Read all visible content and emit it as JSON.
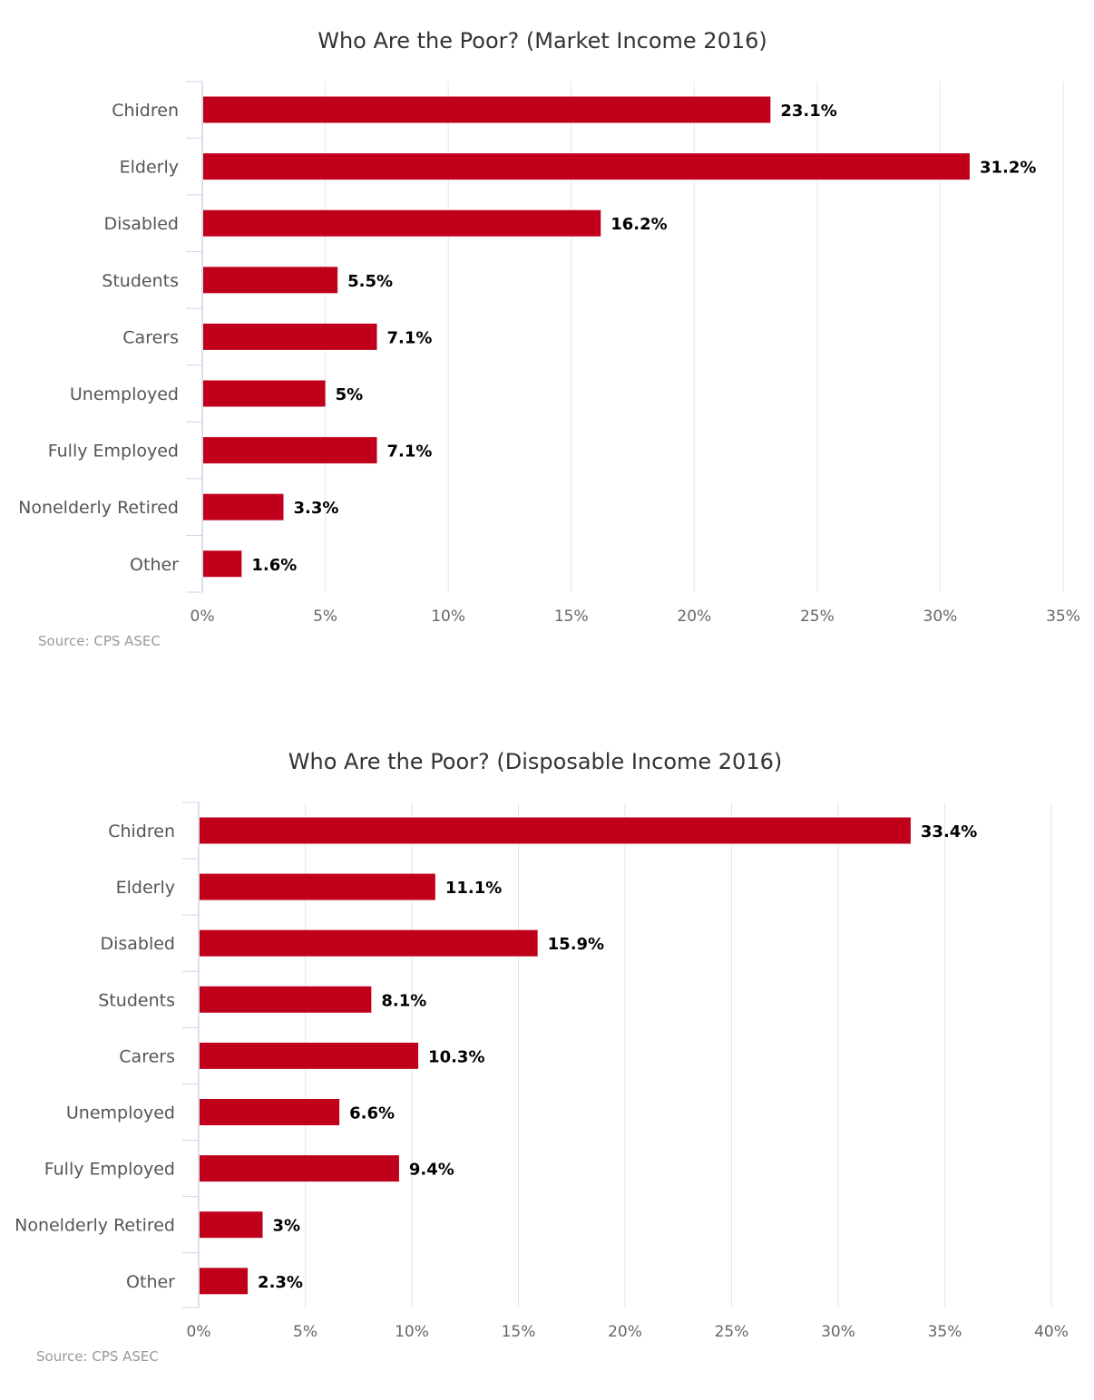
{
  "chart_data": [
    {
      "type": "bar",
      "orientation": "horizontal",
      "title": "Who Are the Poor? (Market Income 2016)",
      "categories": [
        "Chidren",
        "Elderly",
        "Disabled",
        "Students",
        "Carers",
        "Unemployed",
        "Fully Employed",
        "Nonelderly Retired",
        "Other"
      ],
      "values": [
        23.1,
        31.2,
        16.2,
        5.5,
        7.1,
        5,
        7.1,
        3.3,
        1.6
      ],
      "data_labels": [
        "23.1%",
        "31.2%",
        "16.2%",
        "5.5%",
        "7.1%",
        "5%",
        "7.1%",
        "3.3%",
        "1.6%"
      ],
      "xlim": [
        0,
        35
      ],
      "ticks": [
        0,
        5,
        10,
        15,
        20,
        25,
        30,
        35
      ],
      "tick_labels": [
        "0%",
        "5%",
        "10%",
        "15%",
        "20%",
        "25%",
        "30%",
        "35%"
      ],
      "xlabel": "",
      "ylabel": "",
      "grid": true,
      "legend": "none",
      "source": "Source: CPS ASEC",
      "color": "#c0001a"
    },
    {
      "type": "bar",
      "orientation": "horizontal",
      "title": "Who Are the Poor? (Disposable Income 2016)",
      "categories": [
        "Chidren",
        "Elderly",
        "Disabled",
        "Students",
        "Carers",
        "Unemployed",
        "Fully Employed",
        "Nonelderly Retired",
        "Other"
      ],
      "values": [
        33.4,
        11.1,
        15.9,
        8.1,
        10.3,
        6.6,
        9.4,
        3,
        2.3
      ],
      "data_labels": [
        "33.4%",
        "11.1%",
        "15.9%",
        "8.1%",
        "10.3%",
        "6.6%",
        "9.4%",
        "3%",
        "2.3%"
      ],
      "xlim": [
        0,
        40
      ],
      "ticks": [
        0,
        5,
        10,
        15,
        20,
        25,
        30,
        35,
        40
      ],
      "tick_labels": [
        "0%",
        "5%",
        "10%",
        "15%",
        "20%",
        "25%",
        "30%",
        "35%",
        "40%"
      ],
      "xlabel": "",
      "ylabel": "",
      "grid": true,
      "legend": "none",
      "source": "Source: CPS ASEC",
      "color": "#c0001a"
    }
  ]
}
